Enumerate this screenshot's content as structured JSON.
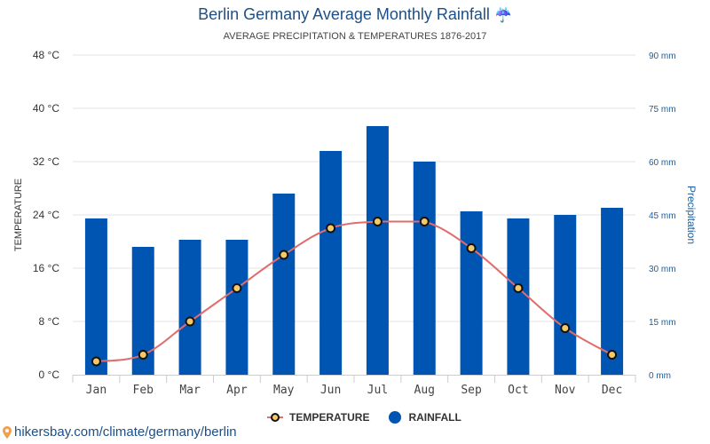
{
  "header": {
    "title": "Berlin Germany Average Monthly Rainfall",
    "title_icon": "umbrella-rain-icon",
    "subtitle": "AVERAGE PRECIPITATION & TEMPERATURES 1876-2017"
  },
  "legend": {
    "temperature_label": "TEMPERATURE",
    "rainfall_label": "RAINFALL"
  },
  "footer": {
    "icon": "location-pin-icon",
    "link_text": "hikersbay.com/climate/germany/berlin"
  },
  "colors": {
    "bar": "#0055b3",
    "line": "#e06c6c",
    "marker_fill": "#f5c96a",
    "marker_stroke": "#111111",
    "title": "#1d4f86",
    "right_axis": "#1d5fa0",
    "grid": "#e3e3e3"
  },
  "chart_data": {
    "type": "bar+line",
    "title": "Berlin Germany Average Monthly Rainfall",
    "subtitle": "AVERAGE PRECIPITATION & TEMPERATURES 1876-2017",
    "categories": [
      "Jan",
      "Feb",
      "Mar",
      "Apr",
      "May",
      "Jun",
      "Jul",
      "Aug",
      "Sep",
      "Oct",
      "Nov",
      "Dec"
    ],
    "series": [
      {
        "name": "RAINFALL",
        "type": "bar",
        "axis": "right",
        "unit": "mm",
        "values": [
          44,
          36,
          38,
          38,
          51,
          63,
          70,
          60,
          46,
          44,
          45,
          47
        ]
      },
      {
        "name": "TEMPERATURE",
        "type": "line",
        "axis": "left",
        "unit": "°C",
        "values": [
          2,
          3,
          8,
          13,
          18,
          22,
          23,
          23,
          19,
          13,
          7,
          3
        ]
      }
    ],
    "y_left": {
      "label": "TEMPERATURE",
      "range": [
        0,
        48
      ],
      "ticks": [
        0,
        8,
        16,
        24,
        32,
        40,
        48
      ],
      "tick_labels": [
        "0 °C",
        "8 °C",
        "16 °C",
        "24 °C",
        "32 °C",
        "40 °C",
        "48 °C"
      ]
    },
    "y_right": {
      "label": "Precipitation",
      "range": [
        0,
        90
      ],
      "ticks": [
        0,
        15,
        30,
        45,
        60,
        75,
        90
      ],
      "tick_labels": [
        "0 mm",
        "15 mm",
        "30 mm",
        "45 mm",
        "60 mm",
        "75 mm",
        "90 mm"
      ]
    },
    "grid": true,
    "legend_position": "bottom-center"
  }
}
